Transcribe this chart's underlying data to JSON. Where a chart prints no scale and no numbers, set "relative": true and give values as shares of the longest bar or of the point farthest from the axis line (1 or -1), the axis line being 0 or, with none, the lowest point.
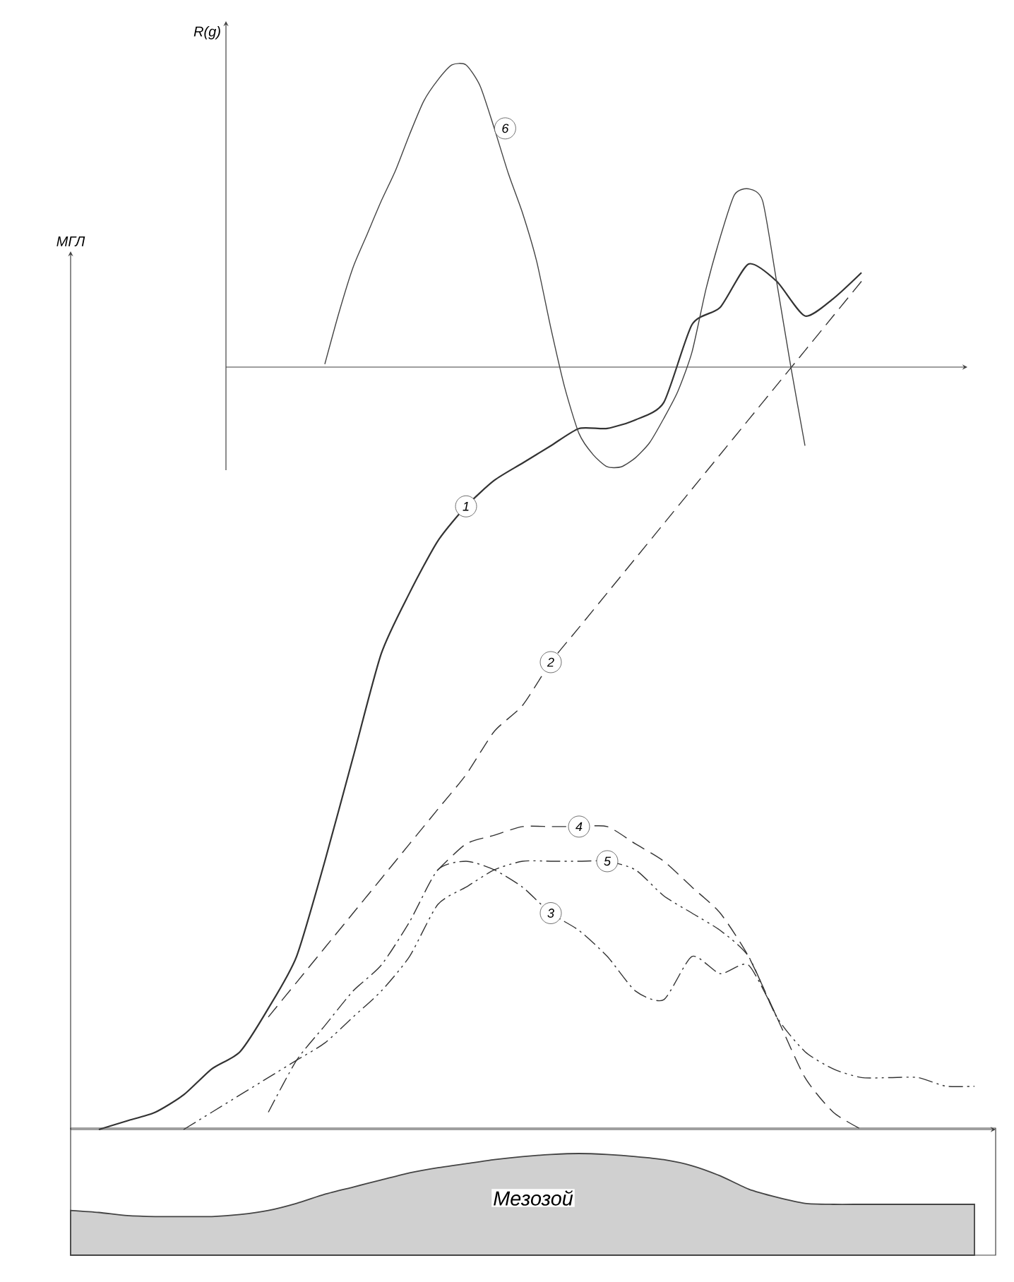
{
  "chart_data": [
    {
      "type": "line",
      "ylabel": "МГЛ",
      "relative": true,
      "categories": [
        null,
        null,
        null,
        null,
        null,
        null,
        null,
        null,
        null,
        null,
        null,
        null,
        null,
        null,
        null,
        null,
        null,
        null,
        null,
        null,
        null,
        null,
        null,
        null,
        null,
        null,
        null,
        null,
        null,
        null,
        null,
        null,
        null
      ],
      "series": [
        {
          "name": "1",
          "color": "#333333",
          "line_style": "solid",
          "values": [
            null,
            0.0,
            0.01,
            0.02,
            0.04,
            0.07,
            0.09,
            0.14,
            0.2,
            0.31,
            0.43,
            0.55,
            0.62,
            0.68,
            0.72,
            0.75,
            0.77,
            0.79,
            0.81,
            0.81,
            0.82,
            0.84,
            0.93,
            0.95,
            1.0,
            0.98,
            0.94,
            0.96,
            0.99,
            null,
            null,
            null,
            null
          ]
        },
        {
          "name": "2",
          "color": "#333333",
          "line_style": "dashed",
          "values": [
            null,
            null,
            null,
            null,
            null,
            null,
            null,
            0.13,
            0.17,
            0.21,
            0.25,
            0.29,
            0.33,
            0.37,
            0.41,
            0.46,
            0.49,
            0.54,
            0.58,
            0.62,
            0.66,
            0.7,
            0.74,
            0.78,
            0.82,
            0.86,
            0.9,
            0.94,
            0.98,
            null,
            null,
            null,
            null
          ]
        },
        {
          "name": "3",
          "color": "#333333",
          "line_style": "dashdotted",
          "values": [
            null,
            null,
            null,
            null,
            null,
            null,
            null,
            0.02,
            0.08,
            0.12,
            0.16,
            0.19,
            0.24,
            0.3,
            0.31,
            0.3,
            0.28,
            0.25,
            0.23,
            0.2,
            0.16,
            0.15,
            0.2,
            0.18,
            0.19,
            0.13,
            null,
            null,
            null,
            null,
            null,
            null,
            null
          ]
        },
        {
          "name": "4",
          "color": "#333333",
          "line_style": "dashed",
          "values": [
            null,
            null,
            null,
            null,
            null,
            null,
            null,
            null,
            null,
            null,
            null,
            null,
            null,
            0.3,
            0.33,
            0.34,
            0.35,
            0.35,
            0.35,
            0.35,
            0.33,
            0.31,
            0.28,
            0.25,
            0.2,
            0.13,
            0.06,
            0.02,
            0.0,
            null,
            null,
            null,
            null
          ]
        },
        {
          "name": "5",
          "color": "#333333",
          "line_style": "dashdotdotted",
          "values": [
            null,
            null,
            null,
            null,
            0.0,
            0.02,
            0.04,
            0.06,
            0.08,
            0.1,
            0.13,
            0.16,
            0.2,
            0.26,
            0.28,
            0.3,
            0.31,
            0.31,
            0.31,
            0.31,
            0.3,
            0.27,
            0.25,
            0.23,
            0.2,
            0.13,
            0.09,
            0.07,
            0.06,
            0.06,
            0.06,
            0.05,
            0.05
          ]
        }
      ]
    },
    {
      "type": "line",
      "ylabel": "R(g)",
      "relative": true,
      "categories": [
        null,
        null,
        null,
        null,
        null,
        null,
        null,
        null,
        null,
        null,
        null,
        null,
        null,
        null,
        null,
        null,
        null,
        null,
        null,
        null,
        null,
        null,
        null,
        null,
        null,
        null,
        null,
        null,
        null,
        null,
        null,
        null,
        null,
        null,
        null,
        null,
        null,
        null,
        null,
        null,
        null,
        null,
        null,
        null,
        null,
        null,
        null,
        null,
        null,
        null,
        null,
        null,
        null
      ],
      "series": [
        {
          "name": "6",
          "color": "#444444",
          "line_style": "solid",
          "values": [
            null,
            null,
            null,
            null,
            null,
            null,
            null,
            0.01,
            0.18,
            0.33,
            0.44,
            0.55,
            0.65,
            0.77,
            0.88,
            0.95,
            1.0,
            1.0,
            0.93,
            0.79,
            0.64,
            0.51,
            0.35,
            0.13,
            -0.07,
            -0.22,
            -0.29,
            -0.33,
            -0.33,
            -0.3,
            -0.25,
            -0.17,
            -0.08,
            0.05,
            0.26,
            0.43,
            0.57,
            0.59,
            0.55,
            0.28,
            0.0,
            -0.26,
            null,
            null,
            null,
            null,
            null,
            null,
            null,
            null,
            null,
            null,
            null
          ]
        }
      ]
    },
    {
      "type": "area",
      "relative": true,
      "annotations": [
        "Мезозой"
      ],
      "categories": [
        null,
        null,
        null,
        null,
        null,
        null,
        null,
        null,
        null,
        null,
        null,
        null,
        null,
        null,
        null,
        null,
        null,
        null,
        null,
        null,
        null,
        null,
        null,
        null,
        null,
        null,
        null,
        null,
        null,
        null,
        null,
        null,
        null
      ],
      "series": [
        {
          "color": "#444444",
          "values": [
            0.44,
            0.42,
            0.39,
            0.38,
            0.38,
            0.38,
            0.4,
            0.44,
            0.51,
            0.6,
            0.67,
            0.74,
            0.81,
            0.86,
            0.9,
            0.94,
            0.97,
            0.99,
            1.0,
            0.99,
            0.97,
            0.94,
            0.88,
            0.78,
            0.65,
            0.57,
            0.51,
            0.5,
            0.5,
            0.5,
            0.5,
            0.5,
            0.5
          ]
        }
      ]
    }
  ]
}
